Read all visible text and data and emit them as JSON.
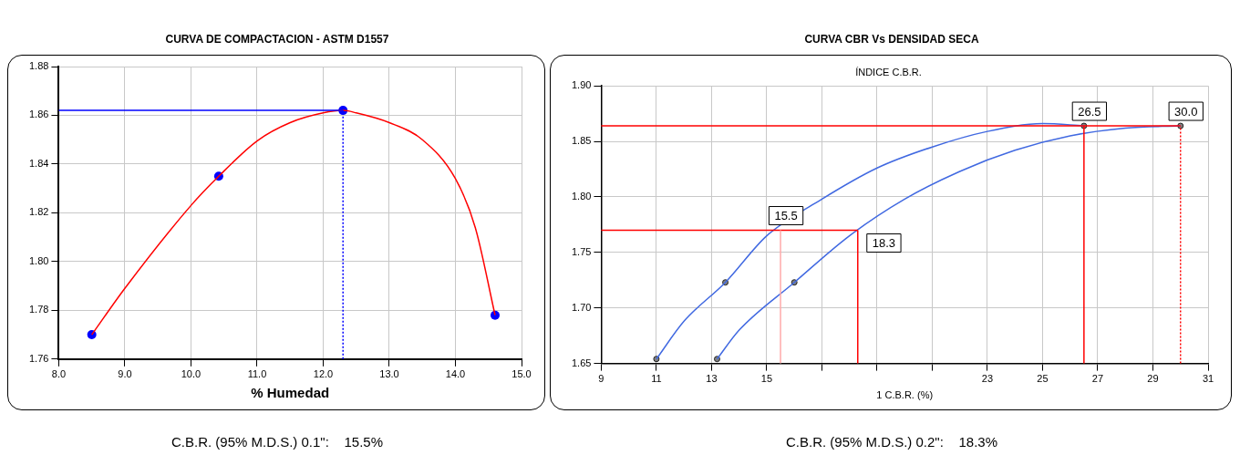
{
  "chart_data": [
    {
      "type": "scatter",
      "title": "CURVA DE COMPACTACION - ASTM D1557",
      "xlabel": "% Humedad",
      "xlim": [
        8.0,
        15.0
      ],
      "xticks": [
        {
          "value": 8,
          "label": "8.0"
        },
        {
          "value": 9,
          "label": "9.0"
        },
        {
          "value": 10,
          "label": "10.0"
        },
        {
          "value": 11,
          "label": "11.0"
        },
        {
          "value": 12,
          "label": "12.0"
        },
        {
          "value": 13,
          "label": "13.0"
        },
        {
          "value": 14,
          "label": "14.0"
        },
        {
          "value": 15,
          "label": "15.0"
        }
      ],
      "ylim": [
        1.76,
        1.88
      ],
      "yticks": [
        {
          "value": 1.76,
          "label": "1.76"
        },
        {
          "value": 1.78,
          "label": "1.78"
        },
        {
          "value": 1.8,
          "label": "1.80"
        },
        {
          "value": 1.82,
          "label": "1.82"
        },
        {
          "value": 1.84,
          "label": "1.84"
        },
        {
          "value": 1.86,
          "label": "1.86"
        },
        {
          "value": 1.88,
          "label": "1.88"
        }
      ],
      "grid": true,
      "legend": false,
      "series": [
        {
          "type": "line",
          "color": "#ff0000",
          "marker": "none",
          "x": [
            8.5,
            9.0,
            10.0,
            10.42,
            11.0,
            11.5,
            12.0,
            12.3,
            12.5,
            13.0,
            13.5,
            14.0,
            14.3,
            14.6
          ],
          "values": [
            1.77,
            1.789,
            1.823,
            1.835,
            1.8495,
            1.857,
            1.861,
            1.862,
            1.861,
            1.857,
            1.85,
            1.834,
            1.814,
            1.778
          ]
        },
        {
          "color": "#0000ff",
          "marker": "circle",
          "x": [
            8.5,
            10.42,
            12.3,
            14.6
          ],
          "values": [
            1.77,
            1.835,
            1.862,
            1.778
          ]
        }
      ],
      "ref_lines": [
        {
          "axis": "y",
          "value": 1.862,
          "color": "#0000ff",
          "line_style": "solid"
        },
        {
          "axis": "x",
          "value": 12.3,
          "color": "#0000ff",
          "line_style": "dotted"
        }
      ],
      "annotations": [
        "C.B.R. (95% M.D.S.) 0.1\":    15.5%"
      ]
    },
    {
      "type": "scatter",
      "title": "CURVA CBR Vs DENSIDAD SECA",
      "subtitle": "ÍNDICE C.B.R.",
      "xlabel": "1 C.B.R. (%)",
      "xlim": [
        9,
        31
      ],
      "xticks": [
        9,
        11,
        13,
        15,
        {
          "value": 17,
          "label": null
        },
        {
          "value": 19,
          "label": null
        },
        {
          "value": 21,
          "label": null
        },
        23,
        25,
        27,
        29,
        31
      ],
      "ylim": [
        1.65,
        1.9
      ],
      "yticks": [
        {
          "value": 1.65,
          "label": "1.65"
        },
        {
          "value": 1.7,
          "label": "1.70"
        },
        {
          "value": 1.75,
          "label": "1.75"
        },
        {
          "value": 1.8,
          "label": "1.80"
        },
        {
          "value": 1.85,
          "label": "1.85"
        },
        {
          "value": 1.9,
          "label": "1.90"
        }
      ],
      "grid": true,
      "legend": false,
      "series": [
        {
          "type": "line",
          "color": "#4169e1",
          "marker": "none",
          "x": [
            11,
            12,
            13.5,
            15,
            17,
            19,
            21,
            23,
            25,
            26.5
          ],
          "values": [
            1.654,
            1.688,
            1.723,
            1.765,
            1.798,
            1.826,
            1.845,
            1.859,
            1.866,
            1.864
          ]
        },
        {
          "type": "line",
          "color": "#4169e1",
          "marker": "none",
          "x": [
            13.2,
            14,
            16,
            18,
            20,
            22,
            24,
            26,
            28,
            30
          ],
          "values": [
            1.654,
            1.68,
            1.723,
            1.765,
            1.798,
            1.823,
            1.842,
            1.855,
            1.862,
            1.864
          ]
        },
        {
          "color": "#808080",
          "marker": "circle",
          "x": [
            11,
            13.5,
            26.5
          ],
          "values": [
            1.654,
            1.723,
            1.864
          ]
        },
        {
          "color": "#808080",
          "marker": "circle",
          "x": [
            13.2,
            16,
            30
          ],
          "values": [
            1.654,
            1.723,
            1.864
          ]
        }
      ],
      "ref_lines": [
        {
          "axis": "y",
          "value": 1.77,
          "color": "#ff0000",
          "line_style": "solid"
        },
        {
          "axis": "x",
          "value": 15.5,
          "color": "#ffaaaa",
          "line_style": "solid"
        },
        {
          "axis": "x",
          "value": 18.3,
          "color": "#ff0000",
          "line_style": "solid"
        },
        {
          "axis": "y",
          "value": 1.864,
          "color": "#ff0000",
          "line_style": "solid"
        },
        {
          "axis": "x",
          "value": 26.5,
          "color": "#ff0000",
          "line_style": "solid"
        },
        {
          "axis": "x",
          "value": 30,
          "color": "#ff0000",
          "line_style": "dotted"
        }
      ],
      "annotations": [
        {
          "text": "15.5",
          "x": 15.5,
          "y": 1.77
        },
        {
          "text": "18.3",
          "x": 18.3,
          "y": 1.77
        },
        {
          "text": "26.5",
          "x": 26.5,
          "y": 1.864
        },
        {
          "text": "30.0",
          "x": 30,
          "y": 1.864
        },
        "C.B.R. (95% M.D.S.) 0.2\":    18.3%"
      ]
    }
  ]
}
